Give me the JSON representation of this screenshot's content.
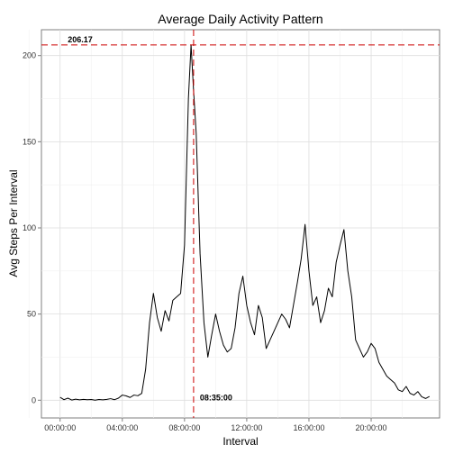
{
  "chart_data": {
    "type": "line",
    "title": "Average Daily Activity Pattern",
    "xlabel": "Interval",
    "ylabel": "Avg Steps Per Interval",
    "x_unit": "hours since 00:00:00",
    "xlim": [
      -1.2,
      24.4
    ],
    "ylim": [
      -10.3,
      215
    ],
    "x_ticks": [
      0,
      4,
      8,
      12,
      16,
      20
    ],
    "x_tick_labels": [
      "00:00:00",
      "04:00:00",
      "08:00:00",
      "12:00:00",
      "16:00:00",
      "20:00:00"
    ],
    "y_ticks": [
      0,
      50,
      100,
      150,
      200
    ],
    "y_tick_labels": [
      "0",
      "50",
      "100",
      "150",
      "200"
    ],
    "grid": true,
    "series": [
      {
        "color": "#000000",
        "x": [
          0.0,
          0.25,
          0.5,
          0.75,
          1.0,
          1.25,
          1.5,
          1.75,
          2.0,
          2.25,
          2.5,
          2.75,
          3.0,
          3.25,
          3.5,
          3.75,
          4.0,
          4.25,
          4.5,
          4.75,
          5.0,
          5.25,
          5.5,
          5.75,
          6.0,
          6.25,
          6.5,
          6.75,
          7.0,
          7.25,
          7.5,
          7.75,
          8.0,
          8.25,
          8.42,
          8.58,
          8.75,
          9.0,
          9.25,
          9.5,
          9.75,
          10.0,
          10.25,
          10.5,
          10.75,
          11.0,
          11.25,
          11.5,
          11.75,
          12.0,
          12.25,
          12.5,
          12.75,
          13.0,
          13.25,
          13.5,
          13.75,
          14.0,
          14.25,
          14.5,
          14.75,
          15.0,
          15.25,
          15.5,
          15.75,
          16.0,
          16.25,
          16.5,
          16.75,
          17.0,
          17.25,
          17.5,
          17.75,
          18.0,
          18.25,
          18.5,
          18.75,
          19.0,
          19.25,
          19.5,
          19.75,
          20.0,
          20.25,
          20.5,
          20.75,
          21.0,
          21.25,
          21.5,
          21.75,
          22.0,
          22.25,
          22.5,
          22.75,
          23.0,
          23.25,
          23.5,
          23.75
        ],
        "y": [
          1.7,
          0.3,
          1.2,
          0.1,
          0.6,
          0.2,
          0.5,
          0.3,
          0.4,
          0.0,
          0.4,
          0.2,
          0.5,
          0.9,
          0.3,
          1.2,
          3.0,
          2.5,
          1.6,
          3.0,
          2.6,
          4.0,
          18,
          45,
          62,
          48,
          40,
          52,
          46,
          58,
          60,
          62,
          90,
          175,
          206.17,
          180,
          155,
          85,
          45,
          25,
          38,
          50,
          40,
          32,
          28,
          30,
          42,
          62,
          72,
          55,
          45,
          38,
          55,
          48,
          30,
          35,
          40,
          45,
          50,
          47,
          42,
          55,
          68,
          82,
          102,
          75,
          55,
          60,
          45,
          52,
          65,
          60,
          80,
          90,
          99,
          75,
          60,
          35,
          30,
          25,
          28,
          33,
          30,
          22,
          18,
          14,
          12,
          10,
          6,
          5,
          8,
          4,
          3,
          5,
          2,
          1,
          2.2
        ]
      }
    ],
    "annotations": [
      {
        "text": "206.17",
        "type": "hline",
        "value": 206.17,
        "color": "#cc0000"
      },
      {
        "text": "08:35:00",
        "type": "vline",
        "value": 8.5833,
        "color": "#cc0000"
      }
    ]
  }
}
